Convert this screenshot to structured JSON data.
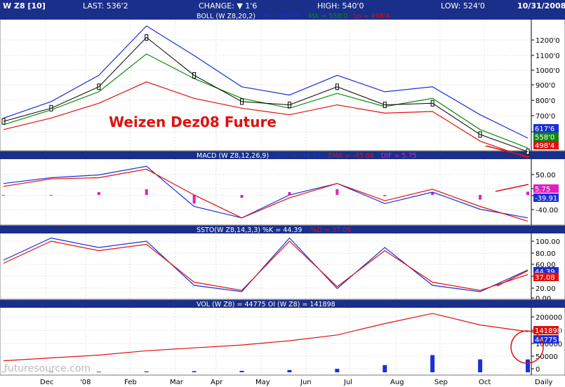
{
  "header": {
    "symbol": "W Z8 [10]",
    "last": "LAST: 536'2",
    "change": "CHANGE: ▼ 1'6",
    "high": "HIGH: 540'0",
    "low": "LOW: 524'0",
    "date": "10/31/2008"
  },
  "annotation": "Weizen Dez08 Future",
  "watermark": "futuresource.com",
  "x_labels": [
    "Dec",
    "'08",
    "Feb",
    "Mar",
    "Apr",
    "May",
    "Jun",
    "Jul",
    "Aug",
    "Sep",
    "Oct",
    "Daily"
  ],
  "panels": {
    "boll": {
      "title": "BOLL (W Z8,20,2)",
      "legend": [
        {
          "text": "Hi = 617'6",
          "color": "#1a2fd8"
        },
        {
          "text": "MA = 558'0",
          "color": "#0a8a0a"
        },
        {
          "text": "Lo = 498'4",
          "color": "#e01010"
        }
      ],
      "ticks": [
        "1200'0",
        "1100'0",
        "1000'0",
        "900'0",
        "800'0",
        "700'0",
        "600'0"
      ],
      "markers": [
        {
          "text": "617'6",
          "color": "#1a2fd8"
        },
        {
          "text": "558'0",
          "color": "#0a8a0a"
        },
        {
          "text": "498'4",
          "color": "#e01010"
        }
      ]
    },
    "macd": {
      "title": "MACD (W Z8,12,26,9)",
      "legend": [
        {
          "text": "DSC = -39.91",
          "color": "#1a2fd8"
        },
        {
          "text": "EMA = -45.66",
          "color": "#e01010"
        },
        {
          "text": "DIF = 5.75",
          "color": "#e020c0"
        }
      ],
      "ticks": [
        "50.00",
        "20.00",
        "-10.00",
        "-40.00"
      ],
      "markers": [
        {
          "text": "5.75",
          "color": "#e020c0"
        },
        {
          "text": "-39.91",
          "color": "#1a2fd8"
        }
      ]
    },
    "ssto": {
      "title": "SSTO(W Z8,14,3,3) %K = 44.39",
      "legend": [
        {
          "text": "%D = 37.08",
          "color": "#e01010"
        }
      ],
      "ticks": [
        "100.00",
        "80.00",
        "60.00",
        "40.00",
        "20.00",
        "0.00"
      ],
      "markers": [
        {
          "text": "44.39",
          "color": "#1a2fd8"
        },
        {
          "text": "37.08",
          "color": "#e01010"
        }
      ]
    },
    "vol": {
      "title": "VOL (W Z8) = 44775 OI (W Z8) = 141898",
      "ticks": [
        "200000",
        "150000",
        "100000",
        "50000",
        "0"
      ],
      "markers": [
        {
          "text": "141898",
          "color": "#e01010"
        },
        {
          "text": "44775",
          "color": "#1a2fd8"
        }
      ]
    }
  },
  "chart_data": [
    {
      "type": "line",
      "title": "BOLL (W Z8,20,2)",
      "x": [
        "Dec",
        "'08",
        "Feb",
        "Mar",
        "Apr",
        "May",
        "Jun",
        "Jul",
        "Aug",
        "Sep",
        "Oct",
        "Oct 31"
      ],
      "series": [
        {
          "name": "Close",
          "values": [
            720,
            800,
            930,
            1230,
            1000,
            840,
            820,
            930,
            820,
            830,
            640,
            536
          ]
        },
        {
          "name": "Hi",
          "values": [
            740,
            840,
            1000,
            1300,
            1120,
            930,
            880,
            1000,
            900,
            930,
            760,
            618
          ]
        },
        {
          "name": "MA",
          "values": [
            700,
            790,
            900,
            1130,
            980,
            860,
            800,
            890,
            810,
            860,
            670,
            558
          ]
        },
        {
          "name": "Lo",
          "values": [
            670,
            740,
            830,
            960,
            860,
            800,
            760,
            820,
            770,
            780,
            600,
            498
          ]
        }
      ],
      "ylim": [
        550,
        1300
      ]
    },
    {
      "type": "line",
      "title": "MACD (W Z8,12,26,9)",
      "x": [
        "Dec",
        "'08",
        "Feb",
        "Mar",
        "Apr",
        "May",
        "Jun",
        "Jul",
        "Aug",
        "Sep",
        "Oct",
        "Oct 31"
      ],
      "series": [
        {
          "name": "DSC",
          "values": [
            20,
            30,
            35,
            50,
            -20,
            -40,
            0,
            20,
            -15,
            5,
            -25,
            -39.91
          ]
        },
        {
          "name": "EMA",
          "values": [
            15,
            28,
            30,
            45,
            0,
            -40,
            -5,
            20,
            -10,
            10,
            -20,
            -45.66
          ]
        },
        {
          "name": "DIF",
          "values": [
            0,
            0,
            5,
            10,
            -15,
            -5,
            5,
            10,
            -2,
            5,
            -8,
            5.75
          ]
        }
      ],
      "ylim": [
        -50,
        60
      ]
    },
    {
      "type": "line",
      "title": "SSTO(W Z8,14,3,3)",
      "x": [
        "Dec",
        "'08",
        "Feb",
        "Mar",
        "Apr",
        "May",
        "Jun",
        "Jul",
        "Aug",
        "Sep",
        "Oct",
        "Oct 31"
      ],
      "series": [
        {
          "name": "%K",
          "values": [
            60,
            95,
            80,
            90,
            20,
            10,
            95,
            15,
            80,
            20,
            10,
            44.39
          ]
        },
        {
          "name": "%D",
          "values": [
            55,
            90,
            75,
            85,
            25,
            12,
            90,
            18,
            75,
            25,
            12,
            37.08
          ]
        }
      ],
      "ylim": [
        0,
        100
      ]
    },
    {
      "type": "bar",
      "title": "VOL (W Z8) = 44775 OI (W Z8) = 141898",
      "x": [
        "Dec",
        "'08",
        "Feb",
        "Mar",
        "Apr",
        "May",
        "Jun",
        "Jul",
        "Aug",
        "Sep",
        "Oct",
        "Oct 31"
      ],
      "series": [
        {
          "name": "VOL",
          "values": [
            1000,
            1500,
            2000,
            3000,
            4000,
            5000,
            8000,
            12000,
            25000,
            60000,
            45000,
            44775
          ]
        },
        {
          "name": "OI",
          "values": [
            40000,
            50000,
            60000,
            75000,
            85000,
            95000,
            110000,
            130000,
            170000,
            205000,
            165000,
            141898
          ]
        }
      ],
      "ylim": [
        0,
        220000
      ]
    }
  ]
}
